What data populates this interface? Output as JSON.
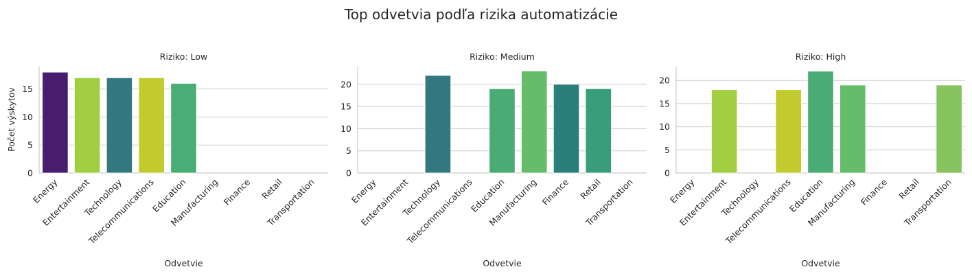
{
  "figure_title": "Top odvetvia podľa rizika automatizácie",
  "chart_data": [
    {
      "type": "bar",
      "title": "Riziko: Low",
      "xlabel": "Odvetvie",
      "ylabel": "Počet výskytov",
      "categories": [
        "Energy",
        "Entertainment",
        "Technology",
        "Telecommunications",
        "Education",
        "Manufacturing",
        "Finance",
        "Retail",
        "Transportation"
      ],
      "values": [
        18,
        17,
        17,
        17,
        16,
        null,
        null,
        null,
        null
      ],
      "colors": [
        "#481d6f",
        "#a2cf42",
        "#33777f",
        "#c2cb2d",
        "#48ae75",
        null,
        null,
        null,
        null
      ],
      "ylim": [
        0,
        19
      ],
      "yticks": [
        0,
        5,
        10,
        15
      ],
      "grid": true
    },
    {
      "type": "bar",
      "title": "Riziko: Medium",
      "xlabel": "Odvetvie",
      "ylabel": "",
      "categories": [
        "Energy",
        "Entertainment",
        "Technology",
        "Telecommunications",
        "Education",
        "Manufacturing",
        "Finance",
        "Retail",
        "Transportation"
      ],
      "values": [
        null,
        null,
        22,
        null,
        19,
        23,
        20,
        19,
        null
      ],
      "colors": [
        null,
        null,
        "#33777f",
        null,
        "#4bab74",
        "#65bc69",
        "#2a7f7b",
        "#379d7b",
        null
      ],
      "ylim": [
        0,
        24
      ],
      "yticks": [
        0,
        5,
        10,
        15,
        20
      ],
      "grid": true
    },
    {
      "type": "bar",
      "title": "Riziko: High",
      "xlabel": "Odvetvie",
      "ylabel": "",
      "categories": [
        "Energy",
        "Entertainment",
        "Technology",
        "Telecommunications",
        "Education",
        "Manufacturing",
        "Finance",
        "Retail",
        "Transportation"
      ],
      "values": [
        null,
        18,
        null,
        18,
        22,
        19,
        null,
        null,
        19
      ],
      "colors": [
        null,
        "#a2cf42",
        null,
        "#c2cb2d",
        "#4bab74",
        "#65bc69",
        null,
        null,
        "#87c35e"
      ],
      "ylim": [
        0,
        23
      ],
      "yticks": [
        0,
        5,
        10,
        15,
        20
      ],
      "grid": true
    }
  ]
}
